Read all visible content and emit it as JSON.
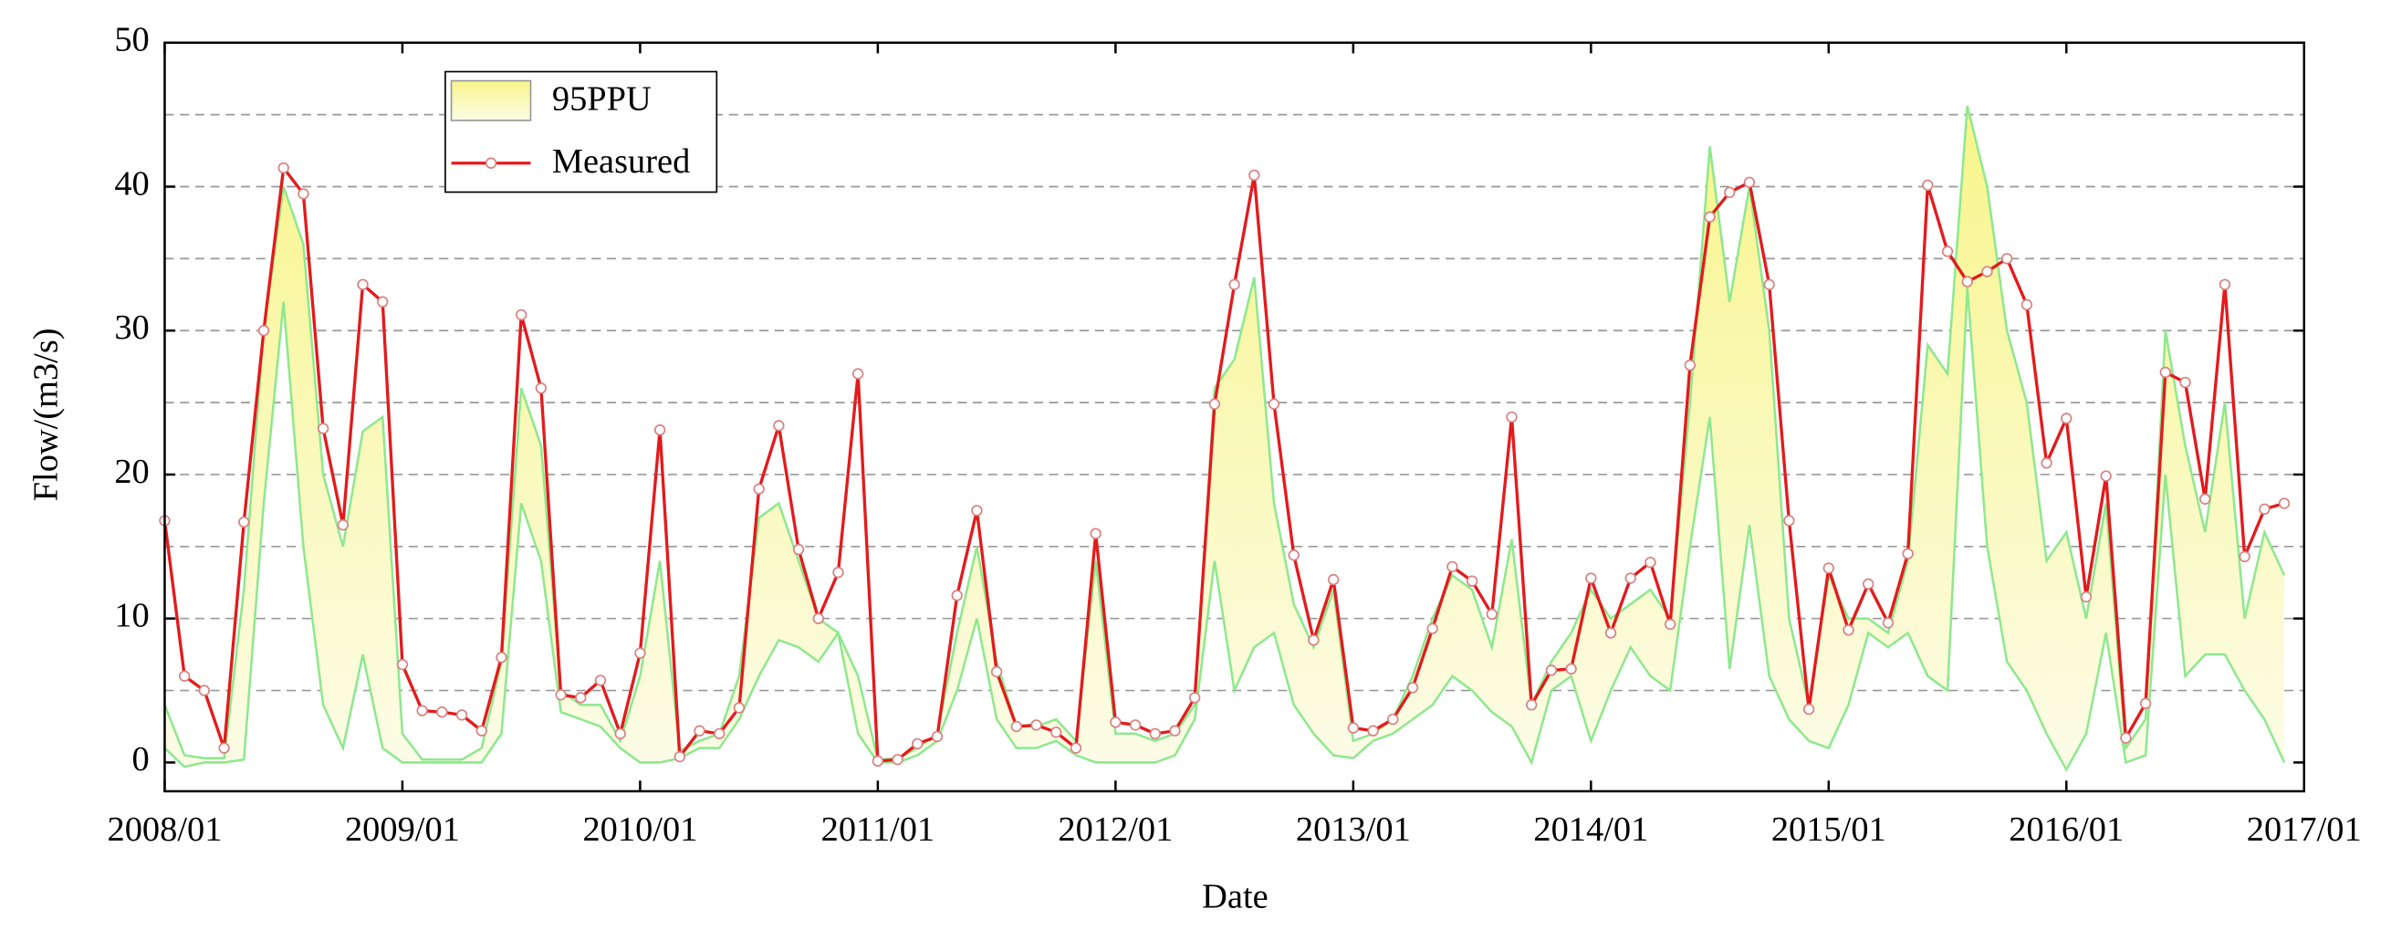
{
  "chart_data": {
    "type": "line",
    "xlabel": "Date",
    "ylabel": "Flow/(m3/s)",
    "x": [
      "2008/01",
      "2008/02",
      "2008/03",
      "2008/04",
      "2008/05",
      "2008/06",
      "2008/07",
      "2008/08",
      "2008/09",
      "2008/10",
      "2008/11",
      "2008/12",
      "2009/01",
      "2009/02",
      "2009/03",
      "2009/04",
      "2009/05",
      "2009/06",
      "2009/07",
      "2009/08",
      "2009/09",
      "2009/10",
      "2009/11",
      "2009/12",
      "2010/01",
      "2010/02",
      "2010/03",
      "2010/04",
      "2010/05",
      "2010/06",
      "2010/07",
      "2010/08",
      "2010/09",
      "2010/10",
      "2010/11",
      "2010/12",
      "2011/01",
      "2011/02",
      "2011/03",
      "2011/04",
      "2011/05",
      "2011/06",
      "2011/07",
      "2011/08",
      "2011/09",
      "2011/10",
      "2011/11",
      "2011/12",
      "2012/01",
      "2012/02",
      "2012/03",
      "2012/04",
      "2012/05",
      "2012/06",
      "2012/07",
      "2012/08",
      "2012/09",
      "2012/10",
      "2012/11",
      "2012/12",
      "2013/01",
      "2013/02",
      "2013/03",
      "2013/04",
      "2013/05",
      "2013/06",
      "2013/07",
      "2013/08",
      "2013/09",
      "2013/10",
      "2013/11",
      "2013/12",
      "2014/01",
      "2014/02",
      "2014/03",
      "2014/04",
      "2014/05",
      "2014/06",
      "2014/07",
      "2014/08",
      "2014/09",
      "2014/10",
      "2014/11",
      "2014/12",
      "2015/01",
      "2015/02",
      "2015/03",
      "2015/04",
      "2015/05",
      "2015/06",
      "2015/07",
      "2015/08",
      "2015/09",
      "2015/10",
      "2015/11",
      "2015/12",
      "2016/01",
      "2016/02",
      "2016/03",
      "2016/04",
      "2016/05",
      "2016/06",
      "2016/07",
      "2016/08",
      "2016/09",
      "2016/10",
      "2016/11",
      "2016/12"
    ],
    "xlim": [
      "2008/01",
      "2017/01"
    ],
    "xticks": [
      "2008/01",
      "2009/01",
      "2010/01",
      "2011/01",
      "2012/01",
      "2013/01",
      "2014/01",
      "2015/01",
      "2016/01",
      "2017/01"
    ],
    "ylim": [
      -2,
      50
    ],
    "yticks": [
      0,
      10,
      20,
      30,
      40,
      50
    ],
    "ygrid": [
      5,
      10,
      15,
      20,
      25,
      30,
      35,
      40,
      45
    ],
    "grid": true,
    "legend": "upper left",
    "band": {
      "name": "95PPU",
      "fill_colors": [
        "#f8f58a",
        "#fcfce8"
      ],
      "edge_color": "#8ee88e",
      "upper": [
        4,
        0.5,
        0.3,
        0.3,
        12,
        30,
        40,
        36,
        20,
        15,
        23,
        24,
        2,
        0.2,
        0.2,
        0.2,
        1,
        7,
        26,
        22,
        5,
        4,
        4,
        1.5,
        6,
        14,
        0.8,
        1.5,
        2,
        6,
        17,
        18,
        14,
        10,
        9,
        6,
        0.2,
        0.3,
        1,
        2,
        9,
        15,
        7,
        2.5,
        2.5,
        3,
        1.5,
        14,
        2,
        2,
        1.5,
        2,
        4,
        26,
        28,
        33.7,
        18,
        11,
        8,
        12,
        1.5,
        2,
        3,
        6,
        10,
        13,
        12,
        8,
        15.5,
        4,
        7,
        9,
        12,
        10,
        11,
        12,
        10,
        25,
        42.8,
        32,
        40,
        30,
        10,
        4,
        13,
        10,
        10,
        9,
        14,
        29,
        27,
        45.6,
        40,
        30,
        25,
        14,
        16,
        10,
        18,
        1,
        3,
        30,
        22,
        16,
        25,
        10,
        16,
        13
      ],
      "lower": [
        1,
        -0.3,
        0,
        0,
        0.2,
        18,
        32,
        15,
        4,
        1,
        7.5,
        1,
        0,
        0,
        0,
        0,
        0,
        2,
        18,
        14,
        3.5,
        3,
        2.5,
        1,
        0,
        0,
        0.3,
        1,
        1,
        3,
        6,
        8.5,
        8,
        7,
        9,
        2,
        0,
        0,
        0.5,
        1.5,
        5,
        10,
        3,
        1,
        1,
        1.5,
        0.5,
        0,
        0,
        0,
        0,
        0.5,
        3,
        14,
        5,
        8,
        9,
        4,
        2,
        0.5,
        0.3,
        1.5,
        2,
        3,
        4,
        6,
        5,
        3.5,
        2.5,
        0,
        5,
        6,
        1.5,
        5,
        8,
        6,
        5,
        15,
        24,
        6.5,
        16.5,
        6,
        3,
        1.5,
        1,
        4,
        9,
        8,
        9,
        6,
        5,
        33,
        15,
        7,
        5,
        2,
        -0.5,
        2,
        9,
        0,
        0.5,
        20,
        6,
        7.5,
        7.5,
        5,
        3,
        0
      ]
    },
    "series": [
      {
        "name": "Measured",
        "color": "#e41a1c",
        "values": [
          16.8,
          6,
          5,
          1,
          16.7,
          30,
          41.3,
          39.5,
          23.2,
          16.5,
          33.2,
          32,
          6.8,
          3.6,
          3.5,
          3.3,
          2.2,
          7.3,
          31.1,
          26,
          4.7,
          4.5,
          5.7,
          2,
          7.6,
          23.1,
          0.4,
          2.2,
          2,
          3.8,
          19,
          23.4,
          14.8,
          10,
          13.2,
          27,
          0.1,
          0.2,
          1.3,
          1.8,
          11.6,
          17.5,
          6.3,
          2.5,
          2.6,
          2.1,
          1,
          15.9,
          2.8,
          2.6,
          2,
          2.2,
          4.5,
          24.9,
          33.2,
          40.8,
          24.9,
          14.4,
          8.5,
          12.7,
          2.4,
          2.2,
          3,
          5.2,
          9.3,
          13.6,
          12.6,
          10.3,
          24,
          4,
          6.4,
          6.5,
          12.8,
          9,
          12.8,
          13.9,
          9.6,
          27.6,
          37.9,
          39.6,
          40.3,
          33.2,
          16.8,
          3.7,
          13.5,
          9.2,
          12.4,
          9.7,
          14.5,
          40.1,
          35.5,
          33.4,
          34.1,
          35,
          31.8,
          20.8,
          23.9,
          11.5,
          19.9,
          1.7,
          4.1,
          27.1,
          26.4,
          18.3,
          33.2,
          14.3,
          17.6,
          18
        ]
      }
    ]
  }
}
